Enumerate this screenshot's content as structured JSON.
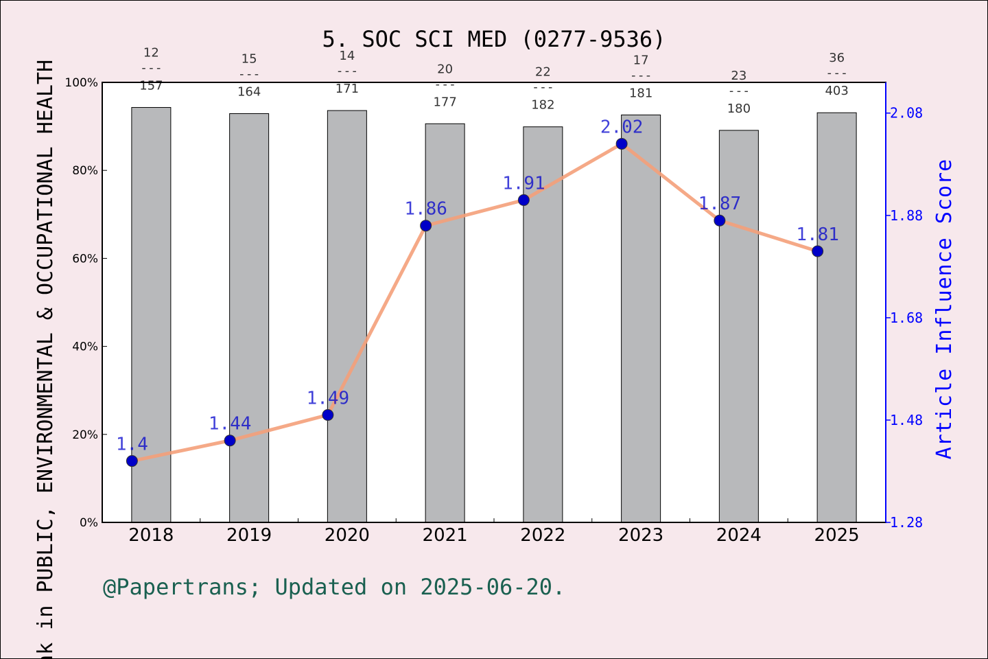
{
  "page": {
    "background": "#f7e8ec",
    "footer": "@Papertrans; Updated on 2025-06-20."
  },
  "chart_data": {
    "type": "bar",
    "title": "5. SOC SCI MED (0277-9536)",
    "xlabel": "",
    "ylabel": "Rank in PUBLIC, ENVIRONMENTAL & OCCUPATIONAL HEALTH",
    "y2label": "Article Influence Score",
    "categories": [
      "2018",
      "2019",
      "2020",
      "2021",
      "2022",
      "2023",
      "2024",
      "2025"
    ],
    "ylim": [
      0,
      100
    ],
    "yticks": [
      "0%",
      "20%",
      "40%",
      "60%",
      "80%",
      "100%"
    ],
    "y2lim": [
      1.28,
      2.14
    ],
    "y2ticks": [
      "1.28",
      "1.48",
      "1.68",
      "1.88",
      "2.08"
    ],
    "grid": false,
    "series": [
      {
        "kind": "bar",
        "color": "#b8b9bb",
        "values": [
          94.3,
          92.9,
          93.6,
          90.6,
          89.9,
          92.6,
          89.1,
          93.1
        ],
        "rank_labels": [
          {
            "rank": "12",
            "total": "157"
          },
          {
            "rank": "15",
            "total": "164"
          },
          {
            "rank": "14",
            "total": "171"
          },
          {
            "rank": "20",
            "total": "177"
          },
          {
            "rank": "22",
            "total": "182"
          },
          {
            "rank": "17",
            "total": "181"
          },
          {
            "rank": "23",
            "total": "180"
          },
          {
            "rank": "36",
            "total": "403"
          }
        ],
        "separator": "---"
      },
      {
        "kind": "line",
        "axis": "right",
        "color": "#f4a07a",
        "marker_color": "#0000c8",
        "label_color": "#0000cc",
        "values": [
          1.4,
          1.44,
          1.49,
          1.86,
          1.91,
          2.02,
          1.87,
          1.81
        ],
        "labels": [
          "1.4",
          "1.44",
          "1.49",
          "1.86",
          "1.91",
          "2.02",
          "1.87",
          "1.81"
        ]
      }
    ],
    "colors": {
      "right_axis": "#0000ff",
      "footer": "#1a6050"
    }
  }
}
